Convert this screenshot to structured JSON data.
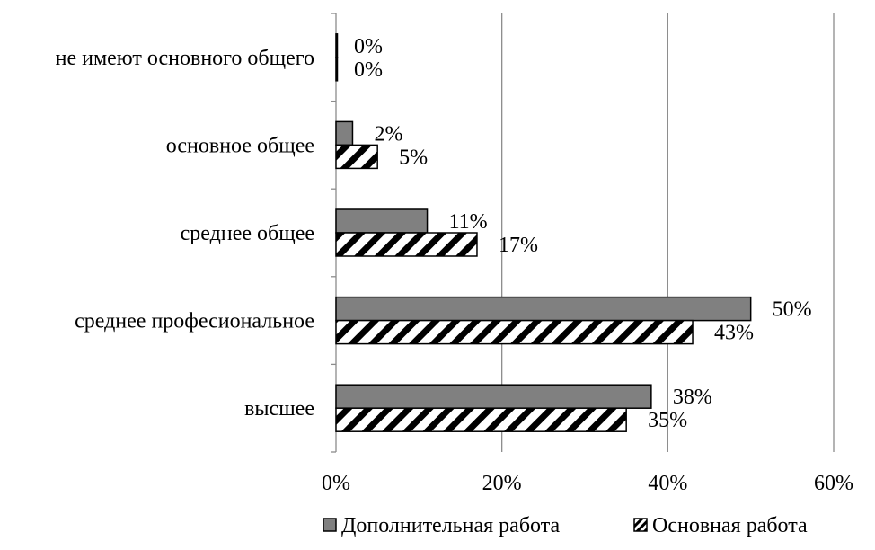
{
  "chart_data": {
    "type": "bar",
    "orientation": "horizontal",
    "categories": [
      "не имеют основного общего",
      "основное общее",
      "среднее общее",
      "среднее професиональное",
      "высшее"
    ],
    "series": [
      {
        "name": "Дополнительная работа",
        "color": "#808080",
        "pattern": "solid",
        "values": [
          0,
          2,
          11,
          50,
          38
        ],
        "labels": [
          "0%",
          "2%",
          "11%",
          "50%",
          "38%"
        ]
      },
      {
        "name": "Основная работа",
        "color": "#000000",
        "pattern": "diagonal-hatch",
        "values": [
          0,
          5,
          17,
          43,
          35
        ],
        "labels": [
          "0%",
          "5%",
          "17%",
          "43%",
          "35%"
        ]
      }
    ],
    "xlim": [
      0,
      60
    ],
    "xticks": [
      0,
      20,
      40,
      60
    ],
    "xtick_labels": [
      "0%",
      "20%",
      "40%",
      "60%"
    ],
    "grid": "vertical",
    "legend_position": "bottom"
  }
}
